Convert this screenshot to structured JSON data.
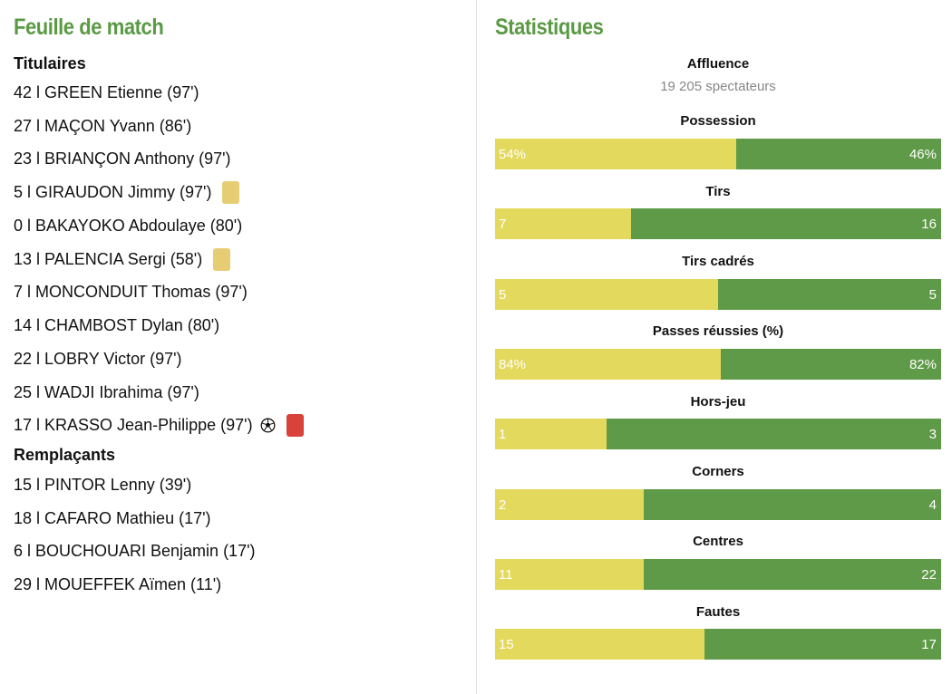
{
  "match_sheet": {
    "title": "Feuille de match",
    "starters_heading": "Titulaires",
    "subs_heading": "Remplaçants",
    "starters": [
      {
        "text": "42 l GREEN Etienne (97')",
        "card": ""
      },
      {
        "text": "27 l MAÇON Yvann (86')",
        "card": ""
      },
      {
        "text": "23 l BRIANÇON Anthony (97')",
        "card": ""
      },
      {
        "text": "5 l GIRAUDON Jimmy (97')",
        "card": "yellow"
      },
      {
        "text": "0 l BAKAYOKO Abdoulaye (80')",
        "card": ""
      },
      {
        "text": "13 l PALENCIA Sergi (58')",
        "card": "yellow"
      },
      {
        "text": "7 l MONCONDUIT Thomas (97')",
        "card": ""
      },
      {
        "text": "14 l CHAMBOST Dylan (80')",
        "card": ""
      },
      {
        "text": "22 l LOBRY Victor (97')",
        "card": ""
      },
      {
        "text": "25 l WADJI Ibrahima (97')",
        "card": ""
      },
      {
        "text": "17 l KRASSO Jean-Philippe (97')",
        "card": "red",
        "goal_icon": "soccer-ball-icon"
      }
    ],
    "subs": [
      {
        "text": "15 l PINTOR Lenny (39')"
      },
      {
        "text": "18 l CAFARO Mathieu (17')"
      },
      {
        "text": "6 l BOUCHOUARI Benjamin (17')"
      },
      {
        "text": "29 l MOUEFFEK Aïmen (11')"
      }
    ]
  },
  "stats": {
    "title": "Statistiques",
    "attendance_label": "Affluence",
    "attendance_value": "19 205 spectateurs",
    "colors": {
      "home": "#e3d95d",
      "away": "#5e9a47",
      "yellow_card": "#e6cd73",
      "red_card": "#d8423b",
      "title": "#5a9a44"
    },
    "items": [
      {
        "label": "Possession",
        "home": "54%",
        "away": "46%",
        "home_share": 0.54
      },
      {
        "label": "Tirs",
        "home": "7",
        "away": "16",
        "home_share": 0.3043
      },
      {
        "label": "Tirs cadrés",
        "home": "5",
        "away": "5",
        "home_share": 0.5
      },
      {
        "label": "Passes réussies (%)",
        "home": "84%",
        "away": "82%",
        "home_share": 0.5061
      },
      {
        "label": "Hors-jeu",
        "home": "1",
        "away": "3",
        "home_share": 0.25
      },
      {
        "label": "Corners",
        "home": "2",
        "away": "4",
        "home_share": 0.3333
      },
      {
        "label": "Centres",
        "home": "11",
        "away": "22",
        "home_share": 0.3333
      },
      {
        "label": "Fautes",
        "home": "15",
        "away": "17",
        "home_share": 0.4688
      }
    ]
  }
}
